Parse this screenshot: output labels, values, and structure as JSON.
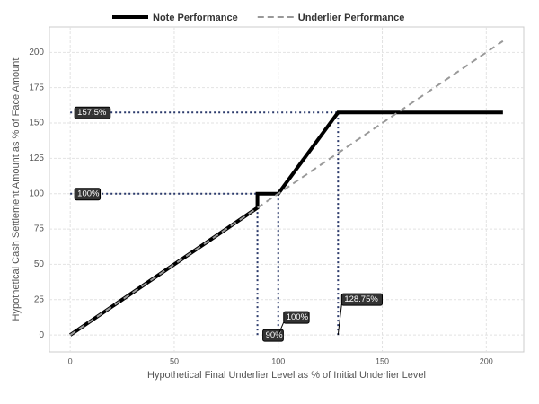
{
  "chart_data": {
    "type": "line",
    "x_label": "Hypothetical Final Underlier Level as % of Initial Underlier Level",
    "y_label": "Hypothetical Cash Settlement Amount as % of Face Amount",
    "xlim": [
      -10,
      218
    ],
    "ylim": [
      -12,
      218
    ],
    "xticks": [
      0,
      50,
      100,
      150,
      200
    ],
    "yticks": [
      0,
      25,
      50,
      75,
      100,
      125,
      150,
      175,
      200
    ],
    "grid": true,
    "legend": "top",
    "series": [
      {
        "name": "Note Performance",
        "color": "#000000",
        "style": "solid",
        "x": [
          0,
          90,
          90,
          100,
          128.75,
          208
        ],
        "values": [
          0,
          90,
          100,
          100,
          157.5,
          157.5
        ]
      },
      {
        "name": "Underlier Performance",
        "color": "#999999",
        "style": "dashed",
        "x": [
          0,
          208
        ],
        "values": [
          0,
          208
        ]
      }
    ],
    "reference_lines": [
      {
        "x": [
          0,
          128.75
        ],
        "values": [
          157.5,
          157.5
        ]
      },
      {
        "x": [
          0,
          100
        ],
        "values": [
          100,
          100
        ]
      },
      {
        "x": [
          90,
          90
        ],
        "values": [
          0,
          100
        ]
      },
      {
        "x": [
          100,
          100
        ],
        "values": [
          0,
          100
        ]
      },
      {
        "x": [
          128.75,
          128.75
        ],
        "values": [
          0,
          157.5
        ]
      }
    ],
    "reference_color": "#2b3a6b",
    "annotations": [
      {
        "text": "157.5%",
        "x": 0,
        "y": 157.5
      },
      {
        "text": "100%",
        "x": 0,
        "y": 100
      },
      {
        "text": "90%",
        "x": 90,
        "y": 0
      },
      {
        "text": "100%",
        "x": 100,
        "y": 0
      },
      {
        "text": "128.75%",
        "x": 128.75,
        "y": 0
      }
    ]
  }
}
